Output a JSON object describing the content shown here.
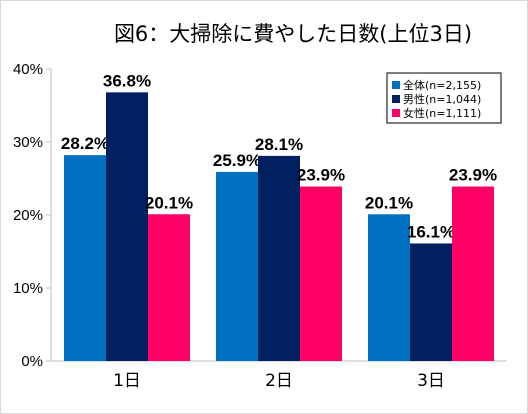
{
  "chart_data": {
    "type": "bar",
    "title": "図6：大掃除に費やした日数(上位3日)",
    "categories": [
      "1日",
      "2日",
      "3日"
    ],
    "series": [
      {
        "name": "全体(n=2,155)",
        "values": [
          28.2,
          25.9,
          20.1
        ],
        "color": "#0070c0"
      },
      {
        "name": "男性(n=1,044)",
        "values": [
          36.8,
          28.1,
          16.1
        ],
        "color": "#002060"
      },
      {
        "name": "女性(n=1,111)",
        "values": [
          20.1,
          23.9,
          23.9
        ],
        "color": "#ff0066"
      }
    ],
    "data_labels": [
      [
        "28.2%",
        "25.9%",
        "20.1%"
      ],
      [
        "36.8%",
        "28.1%",
        "16.1%"
      ],
      [
        "20.1%",
        "23.9%",
        "23.9%"
      ]
    ],
    "y_ticks": [
      "0%",
      "10%",
      "20%",
      "30%",
      "40%"
    ],
    "ylim": [
      0,
      40
    ],
    "xlabel": "",
    "ylabel": "",
    "grid": false,
    "legend_position": "top-right"
  }
}
